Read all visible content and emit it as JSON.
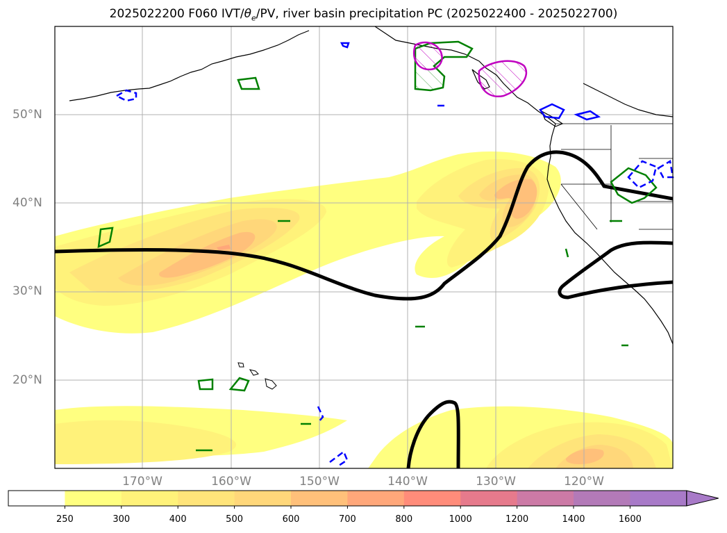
{
  "title": {
    "prefix": "2025022200 F060 IVT/",
    "theta_symbol": "θ",
    "theta_sub": "e",
    "suffix": "/PV, river basin precipitation PC (2025022400 - 2025022700)"
  },
  "map": {
    "type": "map",
    "region": "North-East Pacific",
    "lat_range": [
      10,
      60
    ],
    "lon_range": [
      -180,
      -110
    ],
    "grid": true,
    "lat_labels": [
      "50°N",
      "40°N",
      "30°N",
      "20°N"
    ],
    "lon_labels": [
      "170°W",
      "160°W",
      "150°W",
      "140°W",
      "130°W",
      "120°W"
    ]
  },
  "colorbar": {
    "levels": [
      "250",
      "300",
      "400",
      "500",
      "600",
      "700",
      "800",
      "1000",
      "1200",
      "1400",
      "1600"
    ],
    "colors": [
      "#ffffff",
      "#ffff80",
      "#fff27a",
      "#ffe47a",
      "#ffd77a",
      "#ffc07a",
      "#ffa77a",
      "#ff8c7a",
      "#e67a8c",
      "#cc7aa6",
      "#b37ab8",
      "#a87ac8"
    ],
    "extend": "max"
  },
  "colors": {
    "pv_contour": "#000000",
    "precip_positive": "#008000",
    "precip_negative": "#0000ff",
    "precip_magenta": "#c000c0",
    "grid": "#b0b0b0",
    "coast": "#000000"
  }
}
